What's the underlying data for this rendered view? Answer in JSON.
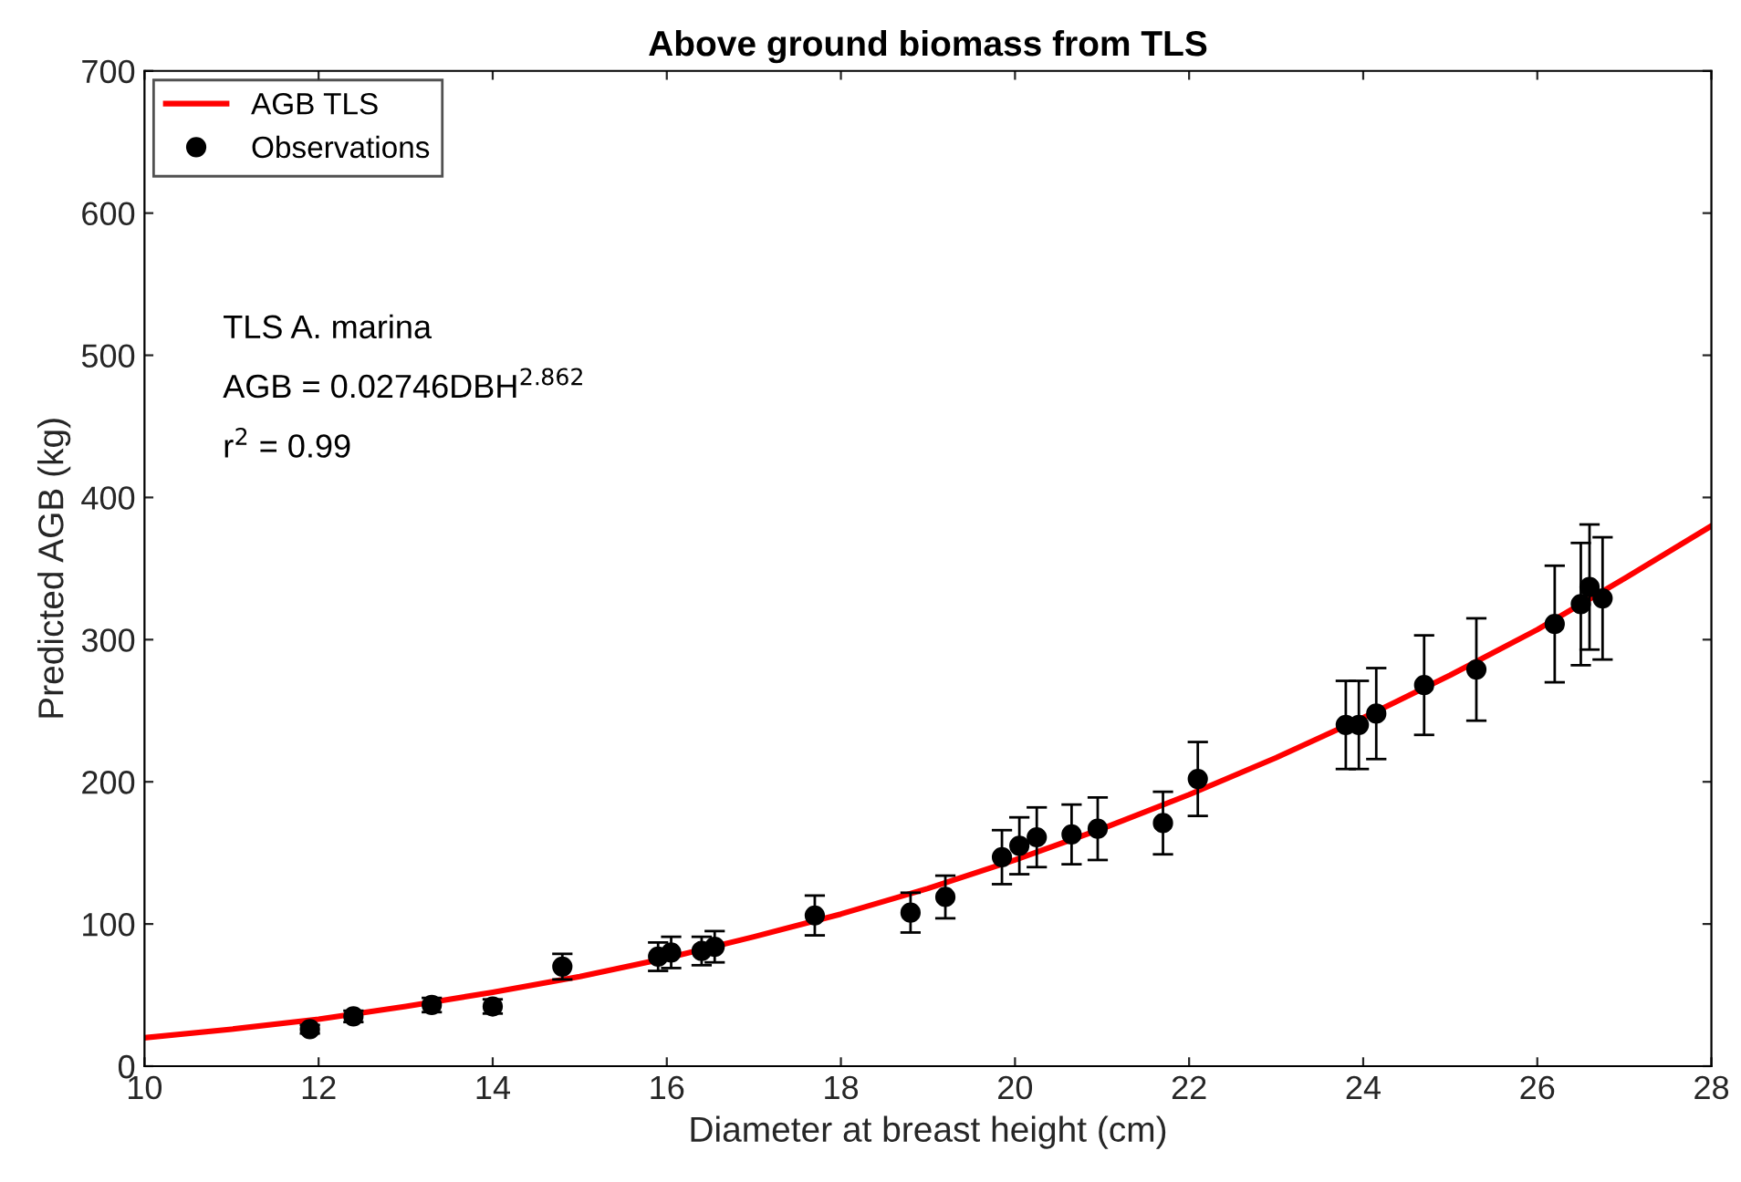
{
  "chart_data": {
    "type": "scatter",
    "title": "Above ground biomass from TLS",
    "xlabel": "Diameter at breast height (cm)",
    "ylabel": "Predicted AGB (kg)",
    "xlim": [
      10,
      28
    ],
    "xticks": [
      10,
      12,
      14,
      16,
      18,
      20,
      22,
      24,
      26,
      28
    ],
    "ylim": [
      0,
      700
    ],
    "yticks": [
      0,
      100,
      200,
      300,
      400,
      500,
      600,
      700
    ],
    "grid": false,
    "legend": "top left",
    "annotations": [
      "TLS A. marina",
      "AGB = 0.02746DBH$^{2.862}$",
      "r$^{2}$ = 0.99"
    ],
    "series": [
      {
        "name": "AGB TLS",
        "type": "line",
        "color": "#ff0000",
        "marker": "none",
        "line_style": "solid",
        "x": [
          10,
          11,
          12,
          13,
          14,
          15,
          16,
          17,
          18,
          19,
          20,
          21,
          22,
          23,
          24,
          25,
          26,
          27,
          28
        ],
        "values": [
          20,
          26,
          33,
          42,
          52,
          63,
          76,
          91,
          107,
          125,
          145,
          167,
          191,
          217,
          245,
          275,
          307,
          343,
          380
        ]
      },
      {
        "name": "Observations",
        "color": "#000000",
        "marker": "circle",
        "x": [
          11.9,
          12.4,
          13.3,
          14.0,
          14.8,
          15.9,
          16.05,
          16.4,
          16.55,
          17.7,
          18.8,
          19.2,
          19.85,
          20.05,
          20.25,
          20.65,
          20.95,
          21.7,
          22.1,
          23.8,
          23.95,
          24.15,
          24.7,
          25.3,
          26.2,
          26.5,
          26.6,
          26.75
        ],
        "values": [
          26,
          35,
          43,
          42,
          70,
          77,
          80,
          81,
          84,
          106,
          108,
          119,
          147,
          155,
          161,
          163,
          167,
          171,
          202,
          240,
          240,
          248,
          268,
          279,
          311,
          325,
          337,
          329
        ],
        "errors": [
          3,
          4,
          5,
          5,
          9,
          10,
          11,
          10,
          11,
          14,
          14,
          15,
          19,
          20,
          21,
          21,
          22,
          22,
          26,
          31,
          31,
          32,
          35,
          36,
          41,
          43,
          44,
          43
        ]
      }
    ]
  }
}
